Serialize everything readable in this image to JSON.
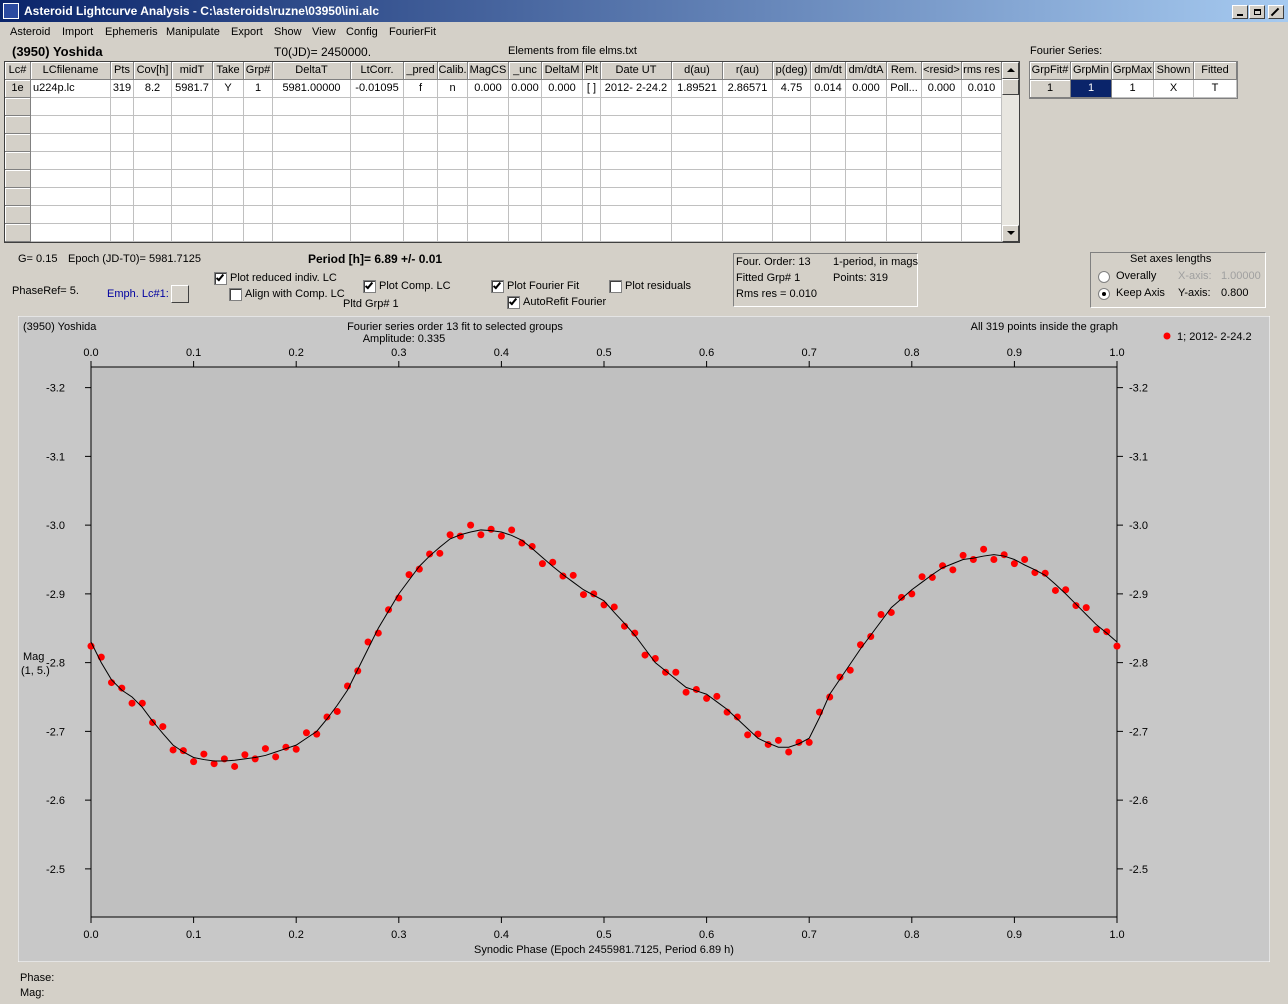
{
  "window": {
    "title": "Asteroid Lightcurve Analysis - C:\\asteroids\\ruzne\\03950\\ini.alc",
    "menu": [
      "Asteroid",
      "Import",
      "Ephemeris",
      "Manipulate",
      "Export",
      "Show",
      "View",
      "Config",
      "FourierFit"
    ]
  },
  "header": {
    "asteroid": "(3950) Yoshida",
    "t0": "T0(JD)= 2450000.",
    "elements": "Elements from file elms.txt",
    "fourier_label": "Fourier Series:"
  },
  "lc_table": {
    "columns": [
      "Lc#",
      "LCfilename",
      "Pts",
      "Cov[h]",
      "midT",
      "Take",
      "Grp#",
      "DeltaT",
      "LtCorr.",
      "_pred",
      "Calib.",
      "MagCS",
      "_unc",
      "DeltaM",
      "Plt",
      "Date UT",
      "d(au)",
      "r(au)",
      "p(deg)",
      "dm/dt",
      "dm/dtA",
      "Rem.",
      "<resid>",
      "rms res"
    ],
    "rows": [
      [
        "1e",
        "u224p.lc",
        "319",
        "8.2",
        "5981.7",
        "Y",
        "1",
        "5981.00000",
        "-0.01095",
        "f",
        "n",
        "0.000",
        "0.000",
        "0.000",
        "[ ]",
        "2012- 2-24.2",
        "1.89521",
        "2.86571",
        "4.75",
        "0.014",
        "0.000",
        "Poll...",
        "0.000",
        "0.010"
      ]
    ]
  },
  "fourier_table": {
    "columns": [
      "GrpFit#",
      "GrpMin",
      "GrpMax",
      "Shown",
      "Fitted"
    ],
    "rows": [
      [
        "1",
        "1",
        "1",
        "X",
        "T"
      ]
    ]
  },
  "controls": {
    "g": "G= 0.15",
    "epoch": "Epoch (JD-T0)= 5981.7125",
    "period": "Period [h]= 6.89 +/- 0.01",
    "phase_ref": "PhaseRef= 5.",
    "emph": "Emph. Lc#1:",
    "pltd_grp": "Pltd Grp#  1",
    "checkboxes": [
      {
        "label": "Plot reduced indiv. LC",
        "checked": true
      },
      {
        "label": "Align with Comp. LC",
        "checked": false
      },
      {
        "label": "Plot Comp. LC",
        "checked": true
      },
      {
        "label": "Plot Fourier Fit",
        "checked": true
      },
      {
        "label": "AutoRefit Fourier",
        "checked": true
      },
      {
        "label": "Plot residuals",
        "checked": false
      }
    ]
  },
  "info_box": {
    "lines": [
      "Four. Order: 13",
      "1-period, in mags",
      "Fitted Grp# 1",
      "Points: 319",
      "Rms res    = 0.010"
    ]
  },
  "axes_box": {
    "title": "Set axes lengths",
    "options": [
      {
        "label": "Overally",
        "selected": false,
        "axis": "X-axis:",
        "value": "1.00000",
        "enabled": false
      },
      {
        "label": "Keep Axis",
        "selected": true,
        "axis": "Y-axis:",
        "value": "0.800",
        "enabled": true
      }
    ]
  },
  "status": {
    "phase": "Phase:",
    "mag": "Mag:"
  },
  "chart_data": {
    "type": "scatter",
    "title": "(3950) Yoshida",
    "subtitle": "Fourier series order 13 fit to selected groups",
    "annotations": [
      "Amplitude: 0.335",
      "All 319 points inside the graph"
    ],
    "xlabel": "Synodic Phase (Epoch 2455981.7125, Period 6.89 h)",
    "ylabel": "Mag",
    "ylabel_sub": "(1, 5.)",
    "xlim": [
      0,
      1
    ],
    "ylim": [
      -2.43,
      -3.23
    ],
    "mirror_axes": true,
    "xticks": [
      {
        "value": 0,
        "label": "0.0"
      },
      0.1,
      0.2,
      0.3,
      0.4,
      0.5,
      0.6,
      0.7,
      0.8,
      0.9,
      {
        "value": 1,
        "label": "1.0"
      }
    ],
    "yticks": [
      -3.2,
      -3.1,
      {
        "value": -3,
        "label": "-3.0"
      },
      -2.9,
      -2.8,
      -2.7,
      -2.6,
      -2.5
    ],
    "x": [
      0,
      0.01,
      0.02,
      0.03,
      0.04,
      0.05,
      0.06,
      0.07,
      0.08,
      0.09,
      0.1,
      0.11,
      0.12,
      0.13,
      0.14,
      0.15,
      0.16,
      0.17,
      0.18,
      0.19,
      0.2,
      0.21,
      0.22,
      0.23,
      0.24,
      0.25,
      0.26,
      0.27,
      0.28,
      0.29,
      0.3,
      0.31,
      0.32,
      0.33,
      0.34,
      0.35,
      0.36,
      0.37,
      0.38,
      0.39,
      0.4,
      0.41,
      0.42,
      0.43,
      0.44,
      0.45,
      0.46,
      0.47,
      0.48,
      0.49,
      0.5,
      0.51,
      0.52,
      0.53,
      0.54,
      0.55,
      0.56,
      0.57,
      0.58,
      0.59,
      0.6,
      0.61,
      0.62,
      0.63,
      0.64,
      0.65,
      0.66,
      0.67,
      0.68,
      0.69,
      0.7,
      0.71,
      0.72,
      0.73,
      0.74,
      0.75,
      0.76,
      0.77,
      0.78,
      0.79,
      0.8,
      0.81,
      0.82,
      0.83,
      0.84,
      0.85,
      0.86,
      0.87,
      0.88,
      0.89,
      0.9,
      0.91,
      0.92,
      0.93,
      0.94,
      0.95,
      0.96,
      0.97,
      0.98,
      0.99,
      1
    ],
    "series": [
      {
        "name": "1; 2012- 2-24.2",
        "type": "scatter",
        "color": "#ff0000",
        "values": [
          -2.824,
          -2.808,
          -2.771,
          -2.763,
          -2.741,
          -2.741,
          -2.713,
          -2.707,
          -2.673,
          -2.672,
          -2.656,
          -2.667,
          -2.653,
          -2.66,
          -2.649,
          -2.666,
          -2.66,
          -2.675,
          -2.663,
          -2.677,
          -2.674,
          -2.698,
          -2.696,
          -2.721,
          -2.729,
          -2.766,
          -2.788,
          -2.83,
          -2.843,
          -2.877,
          -2.894,
          -2.928,
          -2.936,
          -2.958,
          -2.959,
          -2.986,
          -2.984,
          -3,
          -2.986,
          -2.994,
          -2.984,
          -2.993,
          -2.974,
          -2.969,
          -2.944,
          -2.946,
          -2.926,
          -2.927,
          -2.899,
          -2.9,
          -2.884,
          -2.881,
          -2.853,
          -2.843,
          -2.811,
          -2.806,
          -2.786,
          -2.786,
          -2.757,
          -2.761,
          -2.748,
          -2.751,
          -2.728,
          -2.721,
          -2.695,
          -2.696,
          -2.681,
          -2.687,
          -2.67,
          -2.684,
          -2.684,
          -2.728,
          -2.75,
          -2.779,
          -2.789,
          -2.826,
          -2.838,
          -2.87,
          -2.873,
          -2.895,
          -2.9,
          -2.925,
          -2.924,
          -2.941,
          -2.935,
          -2.956,
          -2.95,
          -2.965,
          -2.95,
          -2.957,
          -2.944,
          -2.95,
          -2.931,
          -2.93,
          -2.905,
          -2.906,
          -2.883,
          -2.88,
          -2.848,
          -2.845,
          -2.824
        ]
      },
      {
        "type": "line",
        "color": "#000000",
        "values": [
          -2.83,
          -2.8,
          -2.775,
          -2.76,
          -2.75,
          -2.735,
          -2.715,
          -2.697,
          -2.68,
          -2.67,
          -2.662,
          -2.659,
          -2.657,
          -2.657,
          -2.658,
          -2.66,
          -2.662,
          -2.665,
          -2.67,
          -2.675,
          -2.68,
          -2.69,
          -2.7,
          -2.718,
          -2.738,
          -2.76,
          -2.79,
          -2.82,
          -2.85,
          -2.875,
          -2.9,
          -2.92,
          -2.94,
          -2.955,
          -2.968,
          -2.98,
          -2.986,
          -2.99,
          -2.993,
          -2.992,
          -2.99,
          -2.985,
          -2.978,
          -2.966,
          -2.953,
          -2.94,
          -2.928,
          -2.917,
          -2.906,
          -2.898,
          -2.89,
          -2.873,
          -2.857,
          -2.84,
          -2.82,
          -2.8,
          -2.788,
          -2.776,
          -2.764,
          -2.759,
          -2.754,
          -2.743,
          -2.732,
          -2.718,
          -2.704,
          -2.69,
          -2.683,
          -2.677,
          -2.677,
          -2.682,
          -2.69,
          -2.72,
          -2.754,
          -2.776,
          -2.798,
          -2.82,
          -2.84,
          -2.86,
          -2.88,
          -2.893,
          -2.906,
          -2.917,
          -2.928,
          -2.938,
          -2.944,
          -2.95,
          -2.952,
          -2.955,
          -2.957,
          -2.955,
          -2.95,
          -2.942,
          -2.935,
          -2.927,
          -2.914,
          -2.9,
          -2.885,
          -2.87,
          -2.855,
          -2.843,
          -2.83
        ]
      }
    ]
  }
}
